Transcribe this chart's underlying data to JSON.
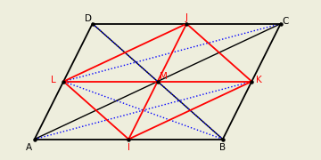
{
  "points": {
    "A": [
      0.0,
      0.0
    ],
    "B": [
      6.5,
      0.0
    ],
    "C": [
      8.5,
      4.0
    ],
    "D": [
      2.0,
      4.0
    ],
    "L": [
      1.0,
      2.0
    ],
    "K": [
      7.5,
      2.0
    ],
    "I": [
      3.25,
      0.0
    ],
    "J": [
      5.25,
      4.0
    ],
    "M": [
      4.25,
      2.0
    ]
  },
  "bg_color": "#eeeedd",
  "xlim": [
    -0.5,
    9.2
  ],
  "ylim": [
    -0.7,
    4.8
  ]
}
